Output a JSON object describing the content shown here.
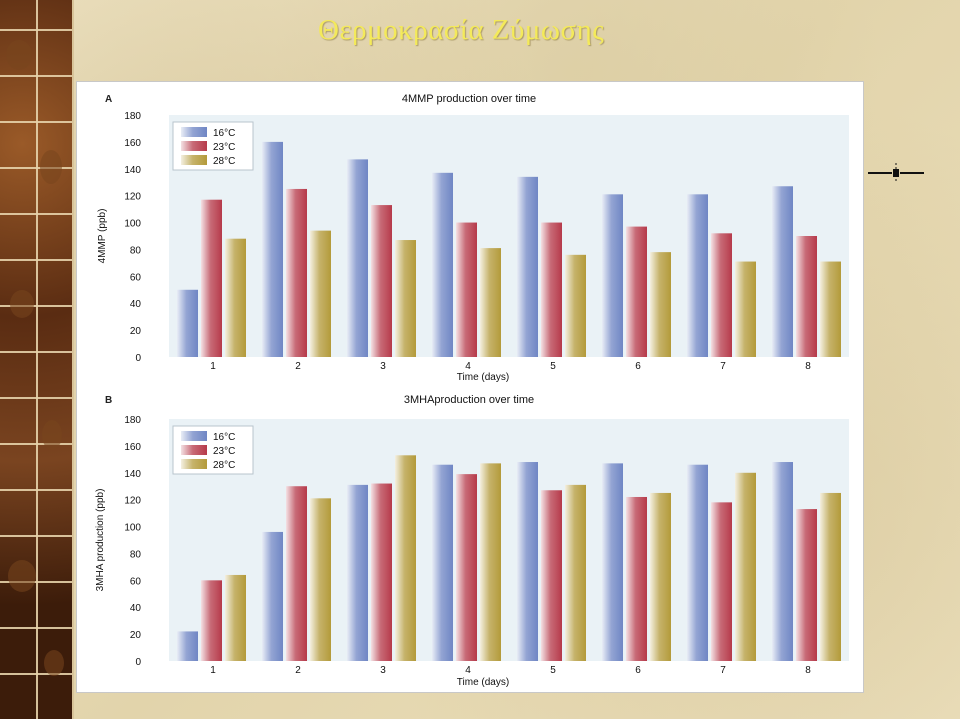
{
  "slide": {
    "title": "Θερμοκρασία Ζύμωσης"
  },
  "colors": {
    "series_16": "#6f86c4",
    "series_23": "#b63a4a",
    "series_28": "#b39a3a",
    "title_color": "#f4ea5a",
    "plot_bg": "#eaf2f6"
  },
  "chart_data": [
    {
      "panel_label": "A",
      "type": "bar",
      "title": "4MMP production over time",
      "xlabel": "Time (days)",
      "ylabel": "4MMP (ppb)",
      "ylim": [
        0,
        180
      ],
      "yticks": [
        0,
        20,
        40,
        60,
        80,
        100,
        120,
        140,
        160,
        180
      ],
      "categories": [
        "1",
        "2",
        "3",
        "4",
        "5",
        "6",
        "7",
        "8"
      ],
      "legend_position": "top-left",
      "series": [
        {
          "name": "16°C",
          "values": [
            50,
            160,
            147,
            137,
            134,
            121,
            121,
            127
          ]
        },
        {
          "name": "23°C",
          "values": [
            117,
            125,
            113,
            100,
            100,
            97,
            92,
            90
          ]
        },
        {
          "name": "28°C",
          "values": [
            88,
            94,
            87,
            81,
            76,
            78,
            71,
            71
          ]
        }
      ]
    },
    {
      "panel_label": "B",
      "type": "bar",
      "title": "3MHAproduction over time",
      "xlabel": "Time (days)",
      "ylabel": "3MHA production (ppb)",
      "ylim": [
        0,
        180
      ],
      "yticks": [
        0,
        20,
        40,
        60,
        80,
        100,
        120,
        140,
        160,
        180
      ],
      "categories": [
        "1",
        "2",
        "3",
        "4",
        "5",
        "6",
        "7",
        "8"
      ],
      "legend_position": "top-left",
      "series": [
        {
          "name": "16°C",
          "values": [
            22,
            96,
            131,
            146,
            148,
            147,
            146,
            148
          ]
        },
        {
          "name": "23°C",
          "values": [
            60,
            130,
            132,
            139,
            127,
            122,
            118,
            113
          ]
        },
        {
          "name": "28°C",
          "values": [
            64,
            121,
            153,
            147,
            131,
            125,
            140,
            125
          ]
        }
      ]
    }
  ]
}
